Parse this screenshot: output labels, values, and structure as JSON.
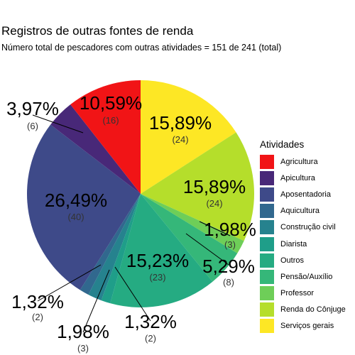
{
  "title": "Registros de outras fontes de renda",
  "subtitle": "Número total de pescadores com outras atividades = 151 de 241 (total)",
  "chart_data": {
    "type": "pie",
    "title": "Registros de outras fontes de renda",
    "subtitle": "Número total de pescadores com outras atividades = 151 de 241 (total)",
    "legend_title": "Atividades",
    "legend_position": "right",
    "total": 151,
    "slices": [
      {
        "name": "Agricultura",
        "count": 16,
        "percent_label": "10,59%",
        "count_label": "(16)",
        "color": "#f11416"
      },
      {
        "name": "Apicultura",
        "count": 6,
        "percent_label": "3,97%",
        "count_label": "(6)",
        "color": "#482878"
      },
      {
        "name": "Aposentadoria",
        "count": 40,
        "percent_label": "26,49%",
        "count_label": "(40)",
        "color": "#3e4a89"
      },
      {
        "name": "Aquicultura",
        "count": 2,
        "percent_label": "1,32%",
        "count_label": "(2)",
        "color": "#31688e"
      },
      {
        "name": "Construção civil",
        "count": 3,
        "percent_label": "1,98%",
        "count_label": "(3)",
        "color": "#26828e"
      },
      {
        "name": "Diarista",
        "count": 2,
        "percent_label": "1,32%",
        "count_label": "(2)",
        "color": "#1f9e89"
      },
      {
        "name": "Outros",
        "count": 23,
        "percent_label": "15,23%",
        "count_label": "(23)",
        "color": "#25ab82"
      },
      {
        "name": "Pensão/Auxílio",
        "count": 8,
        "percent_label": "5,29%",
        "count_label": "(8)",
        "color": "#35b779"
      },
      {
        "name": "Professor",
        "count": 3,
        "percent_label": "1,98%",
        "count_label": "(3)",
        "color": "#6ece58"
      },
      {
        "name": "Renda do Cônjuge",
        "count": 24,
        "percent_label": "15,89%",
        "count_label": "(24)",
        "color": "#b5de2b"
      },
      {
        "name": "Serviços gerais",
        "count": 24,
        "percent_label": "15,89%",
        "count_label": "(24)",
        "color": "#fde725"
      }
    ],
    "draw_order": [
      "Serviços gerais",
      "Renda do Cônjuge",
      "Professor",
      "Pensão/Auxílio",
      "Outros",
      "Diarista",
      "Construção civil",
      "Aquicultura",
      "Aposentadoria",
      "Apicultura",
      "Agricultura"
    ]
  }
}
